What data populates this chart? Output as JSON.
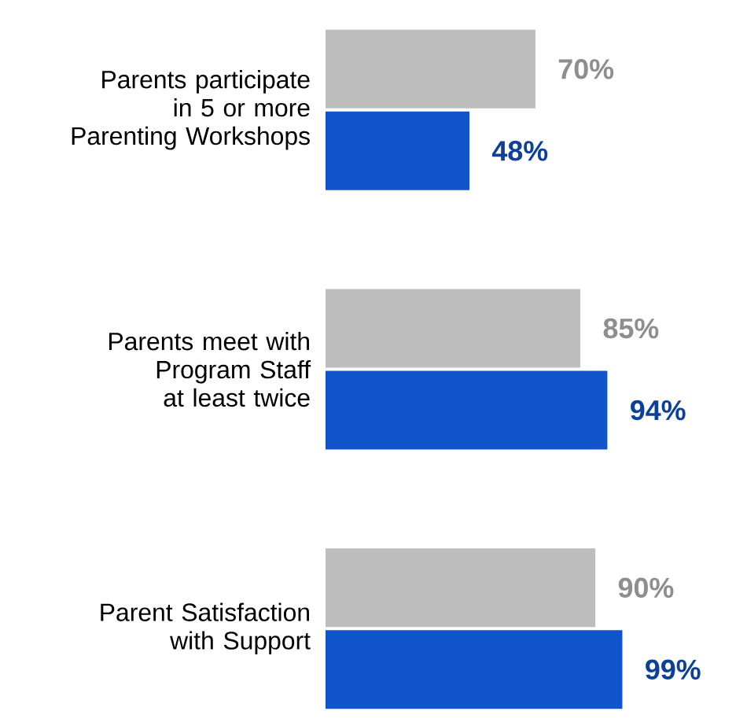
{
  "chart_data": {
    "type": "bar",
    "orientation": "horizontal",
    "categories": [
      "Parents participate in 5 or more Parenting Workshops",
      "Parents meet with Program Staff at least twice",
      "Parent Satisfaction with Support"
    ],
    "series": [
      {
        "color": "#bdbdbd",
        "values": [
          70,
          85,
          90
        ],
        "value_labels": [
          "70%",
          "85%",
          "90%"
        ]
      },
      {
        "color": "#1155cc",
        "values": [
          48,
          94,
          99
        ],
        "value_labels": [
          "48%",
          "94%",
          "99%"
        ]
      }
    ]
  }
}
